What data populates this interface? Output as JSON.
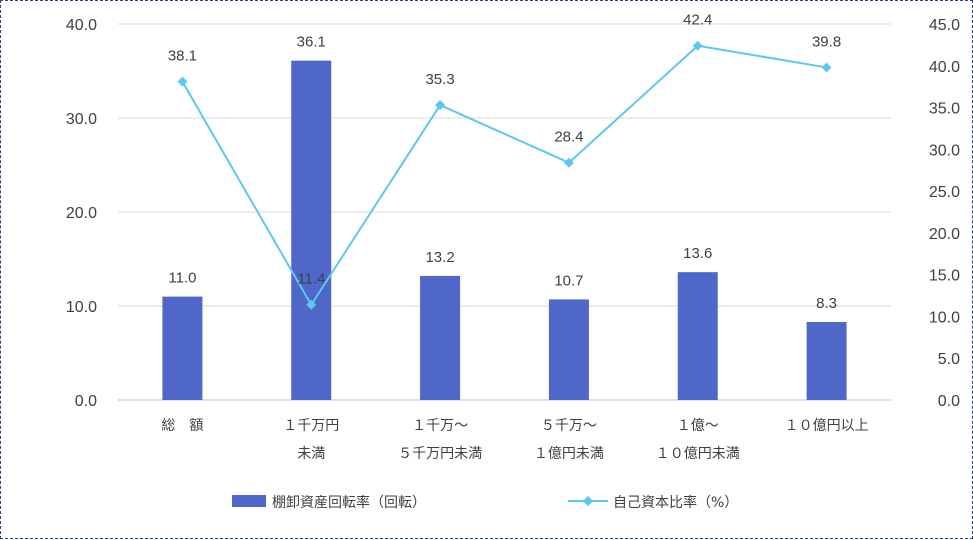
{
  "chart_data": {
    "type": "bar+line",
    "categories": [
      [
        "総　額"
      ],
      [
        "１千万円",
        "未満"
      ],
      [
        "１千万～",
        "５千万円未満"
      ],
      [
        "５千万～",
        "１億円未満"
      ],
      [
        "１億～",
        "１０億円未満"
      ],
      [
        "１０億円以上"
      ]
    ],
    "series": [
      {
        "name": "棚卸資産回転率（回転）",
        "type": "bar",
        "axis": "left",
        "color": "#4e67c8",
        "values": [
          11.0,
          36.1,
          13.2,
          10.7,
          13.6,
          8.3
        ],
        "labels": [
          "11.0",
          "36.1",
          "13.2",
          "10.7",
          "13.6",
          "8.3"
        ]
      },
      {
        "name": "自己資本比率（%）",
        "type": "line",
        "axis": "right",
        "color": "#5bc8ee",
        "marker": "diamond",
        "values": [
          38.1,
          11.4,
          35.3,
          28.4,
          42.4,
          39.8
        ],
        "labels": [
          "38.1",
          "11.4",
          "35.3",
          "28.4",
          "42.4",
          "39.8"
        ]
      }
    ],
    "y_left": {
      "range": [
        0,
        40
      ],
      "ticks": [
        0,
        10,
        20,
        30,
        40
      ],
      "tick_labels": [
        "0.0",
        "10.0",
        "20.0",
        "30.0",
        "40.0"
      ]
    },
    "y_right": {
      "range": [
        0,
        45
      ],
      "ticks": [
        0,
        5,
        10,
        15,
        20,
        25,
        30,
        35,
        40,
        45
      ],
      "tick_labels": [
        "0.0",
        "5.0",
        "10.0",
        "15.0",
        "20.0",
        "25.0",
        "30.0",
        "35.0",
        "40.0",
        "45.0"
      ]
    },
    "grid": true,
    "legend": "bottom"
  }
}
